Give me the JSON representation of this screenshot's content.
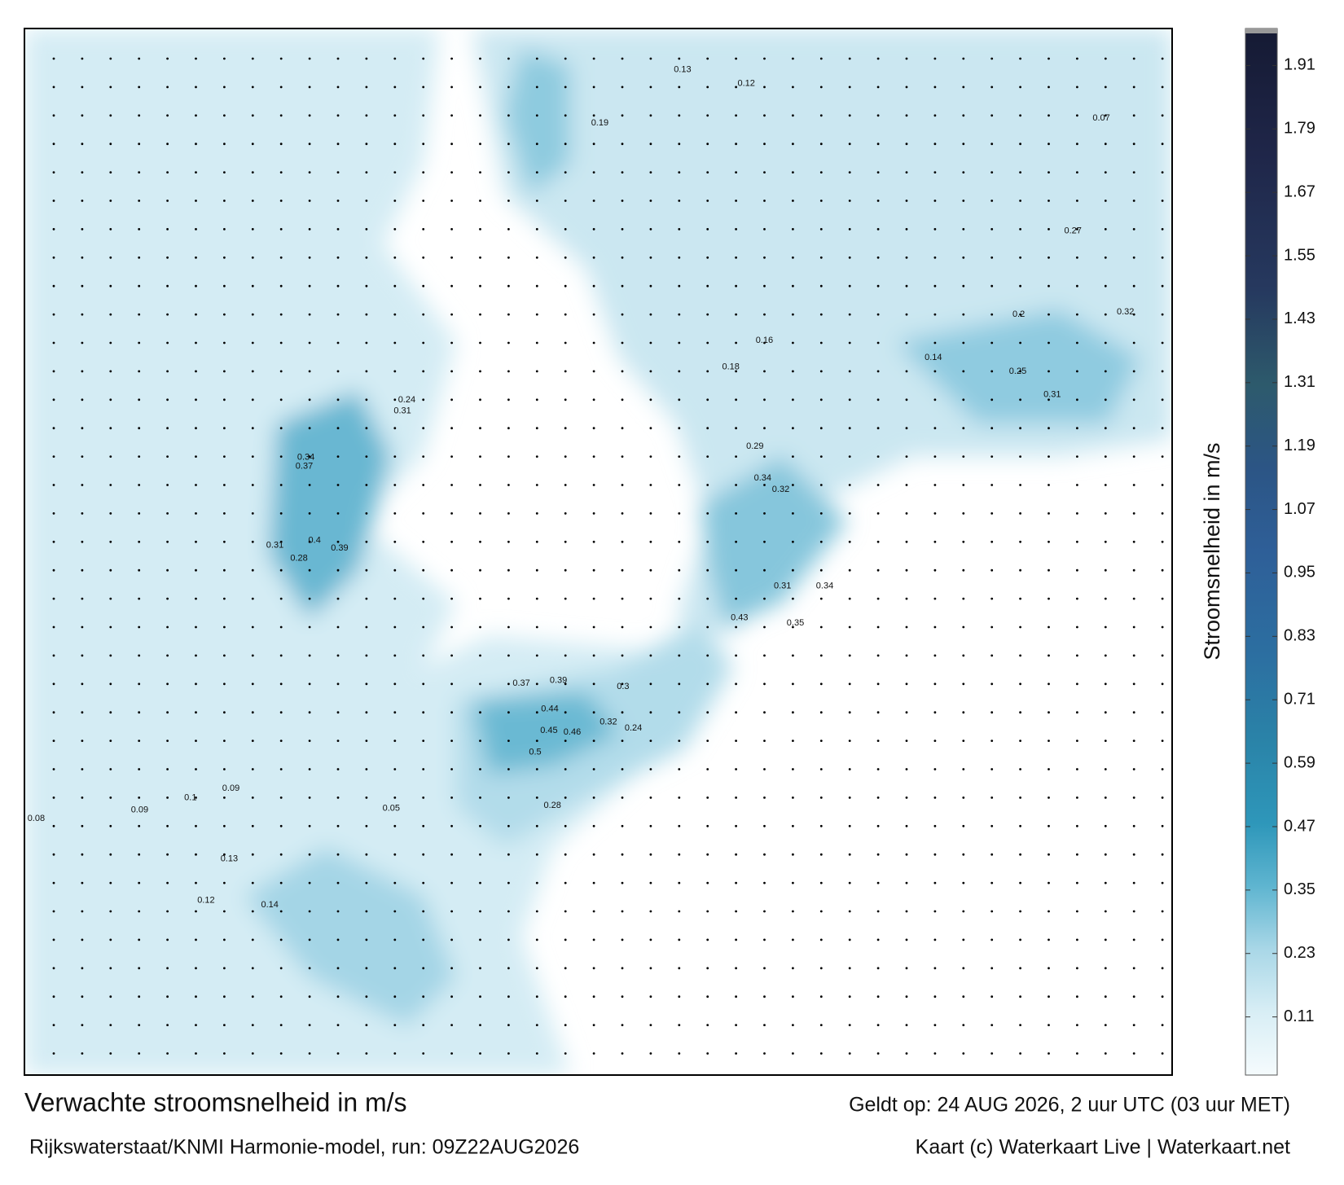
{
  "title": "Verwachte stroomsnelheid in m/s",
  "valid_time": "Geldt op: 24 AUG 2026, 2 uur UTC (03 uur MET)",
  "source": "Rijkswaterstaat/KNMI Harmonie-model, run: 09Z22AUG2026",
  "credit": "Kaart (c) Waterkaart Live | Waterkaart.net",
  "colorbar": {
    "label": "Stroomsnelheid in m/s",
    "lim": [
      0,
      1.98
    ],
    "ticks": [
      0.11,
      0.23,
      0.35,
      0.47,
      0.59,
      0.71,
      0.83,
      0.95,
      1.07,
      1.19,
      1.31,
      1.43,
      1.55,
      1.67,
      1.79,
      1.91
    ]
  },
  "map_labels": [
    0.44,
    0.45,
    0.46,
    0.39,
    0.37,
    0.3,
    0.32,
    0.24,
    0.5,
    0.28,
    0.43,
    0.35,
    0.34,
    0.31,
    0.32,
    0.34,
    0.29,
    0.25,
    0.31,
    0.32,
    0.27,
    0.4,
    0.39,
    0.37,
    0.34,
    0.31,
    0.28,
    0.24,
    0.31,
    0.13,
    0.12,
    0.19,
    0.16,
    0.18,
    0.14,
    0.07,
    0.2,
    0.14,
    0.13,
    0.1,
    0.09,
    0.09,
    0.12,
    0.05,
    0.08
  ]
}
